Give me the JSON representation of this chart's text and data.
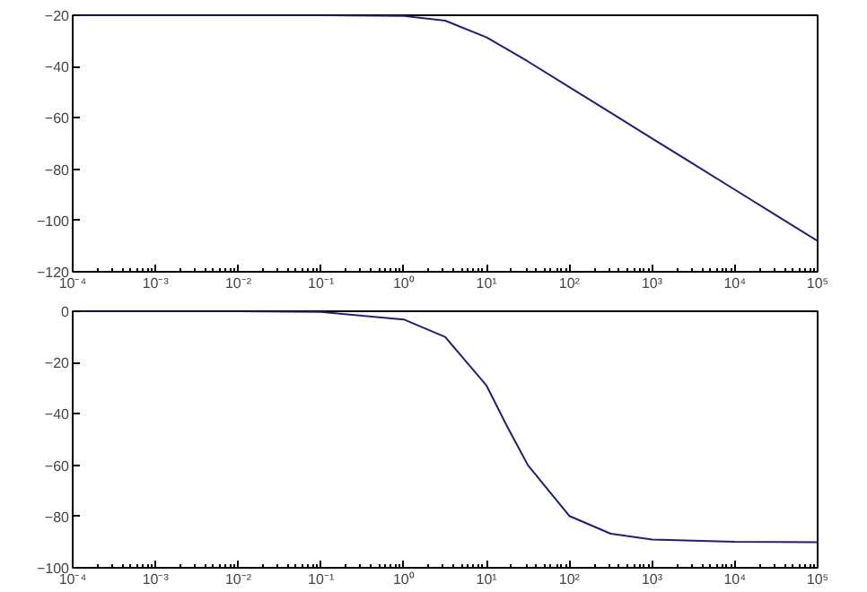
{
  "chart_data": [
    {
      "type": "line",
      "log": "x",
      "x": [
        0.0001,
        0.001,
        0.01,
        0.1,
        1,
        3.16,
        10,
        31.6,
        100,
        316,
        1000,
        3162,
        10000,
        31623,
        100000
      ],
      "series": [
        {
          "color": "#1f1f7a",
          "values": [
            -20,
            -20,
            -20,
            -20,
            -20.3,
            -22.1,
            -28.6,
            -38,
            -48,
            -58,
            -68,
            -78,
            -88,
            -98,
            -108
          ]
        }
      ],
      "xlim": [
        0.0001,
        100000
      ],
      "ylim": [
        -120,
        -20
      ],
      "xticks": [
        {
          "value": 0.0001,
          "label": "10⁻⁴"
        },
        {
          "value": 0.001,
          "label": "10⁻³"
        },
        {
          "value": 0.01,
          "label": "10⁻²"
        },
        {
          "value": 0.1,
          "label": "10⁻¹"
        },
        {
          "value": 1,
          "label": "10⁰"
        },
        {
          "value": 10,
          "label": "10¹"
        },
        {
          "value": 100,
          "label": "10²"
        },
        {
          "value": 1000,
          "label": "10³"
        },
        {
          "value": 10000,
          "label": "10⁴"
        },
        {
          "value": 100000,
          "label": "10⁵"
        }
      ],
      "yticks": [
        -120,
        -100,
        -80,
        -60,
        -40,
        -20
      ]
    },
    {
      "type": "line",
      "log": "x",
      "x": [
        0.0001,
        0.001,
        0.01,
        0.1,
        1,
        3.16,
        10,
        17.8,
        31.6,
        100,
        316,
        1000,
        10000,
        100000
      ],
      "series": [
        {
          "color": "#1f1f7a",
          "values": [
            0,
            0,
            0,
            -0.3,
            -3.2,
            -10,
            -29,
            -45,
            -60,
            -79.8,
            -86.7,
            -89,
            -89.9,
            -90
          ]
        }
      ],
      "xlim": [
        0.0001,
        100000
      ],
      "ylim": [
        -100,
        0
      ],
      "xticks": [
        {
          "value": 0.0001,
          "label": "10⁻⁴"
        },
        {
          "value": 0.001,
          "label": "10⁻³"
        },
        {
          "value": 0.01,
          "label": "10⁻²"
        },
        {
          "value": 0.1,
          "label": "10⁻¹"
        },
        {
          "value": 1,
          "label": "10⁰"
        },
        {
          "value": 10,
          "label": "10¹"
        },
        {
          "value": 100,
          "label": "10²"
        },
        {
          "value": 1000,
          "label": "10³"
        },
        {
          "value": 10000,
          "label": "10⁴"
        },
        {
          "value": 100000,
          "label": "10⁵"
        }
      ],
      "yticks": [
        -100,
        -80,
        -60,
        -40,
        -20,
        0
      ]
    }
  ]
}
